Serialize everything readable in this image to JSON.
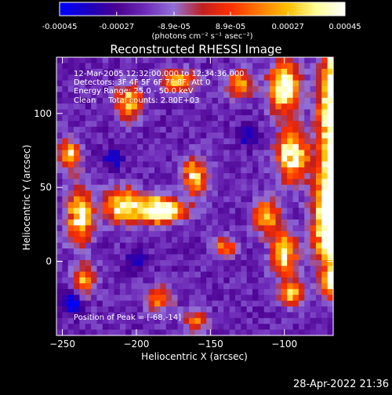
{
  "timestamp": "28-Apr-2022 21:36",
  "chart_data": {
    "type": "heatmap",
    "title": "Reconstructed RHESSI Image",
    "xlabel": "Heliocentric X (arcsec)",
    "ylabel": "Heliocentric Y (arcsec)",
    "xlim": [
      -254,
      -67
    ],
    "ylim": [
      -50,
      138
    ],
    "xticks": [
      -250,
      -200,
      -150,
      -100
    ],
    "yticks": [
      0,
      50,
      100
    ],
    "colorbar": {
      "range": [
        -0.00045,
        0.00045
      ],
      "tick_values": [
        -0.00045,
        -0.00027,
        -8.9e-05,
        8.9e-05,
        0.00027,
        0.00045
      ],
      "tick_labels": [
        "-0.00045",
        "-0.00027",
        "-8.9e-05",
        "8.9e-05",
        "0.00027",
        "0.00045"
      ],
      "unit_label": "(photons cm⁻² s⁻¹ asec⁻²)",
      "colors": [
        "#0000ff",
        "#1a00c0",
        "#4a0090",
        "#6e2ab8",
        "#9070d8",
        "#c02020",
        "#ff3000",
        "#ff7a00",
        "#ffc000",
        "#ffff9a",
        "#ffffff"
      ]
    },
    "annotations": [
      "12-Mar-2005 12:32:00.000 to 12:34:36.000",
      "Detectors: 3F 4F 5F 6F 7F 8F, Att 0",
      "Energy Range: 25.0 - 50.0 keV",
      "Clean     Total counts: 2.80E+03"
    ],
    "peak_label": "Position of Peak = [-68,-14]",
    "peak": [
      -68,
      -14
    ],
    "grid": false,
    "regions": [
      {
        "x": -64,
        "y": 95,
        "sx": 8,
        "sy": 45,
        "amp": 1.0
      },
      {
        "x": -68,
        "y": 25,
        "sx": 8,
        "sy": 22,
        "amp": 0.85
      },
      {
        "x": -64,
        "y": -14,
        "sx": 6,
        "sy": 6,
        "amp": 1.0
      },
      {
        "x": -100,
        "y": 118,
        "sx": 7,
        "sy": 12,
        "amp": 0.75
      },
      {
        "x": -95,
        "y": 72,
        "sx": 7,
        "sy": 12,
        "amp": 0.75
      },
      {
        "x": -112,
        "y": 30,
        "sx": 6,
        "sy": 8,
        "amp": 0.55
      },
      {
        "x": -100,
        "y": 5,
        "sx": 6,
        "sy": 10,
        "amp": 0.6
      },
      {
        "x": -95,
        "y": -22,
        "sx": 6,
        "sy": 6,
        "amp": 0.55
      },
      {
        "x": -185,
        "y": 35,
        "sx": 12,
        "sy": 6,
        "amp": 0.9
      },
      {
        "x": -160,
        "y": 58,
        "sx": 6,
        "sy": 8,
        "amp": 0.6
      },
      {
        "x": -210,
        "y": 38,
        "sx": 8,
        "sy": 8,
        "amp": 0.6
      },
      {
        "x": -238,
        "y": 30,
        "sx": 6,
        "sy": 12,
        "amp": 0.7
      },
      {
        "x": -245,
        "y": 72,
        "sx": 5,
        "sy": 8,
        "amp": 0.55
      },
      {
        "x": -205,
        "y": 108,
        "sx": 6,
        "sy": 8,
        "amp": 0.55
      },
      {
        "x": -172,
        "y": 122,
        "sx": 8,
        "sy": 5,
        "amp": 0.55
      },
      {
        "x": -130,
        "y": 120,
        "sx": 6,
        "sy": 6,
        "amp": 0.5
      },
      {
        "x": -235,
        "y": -12,
        "sx": 5,
        "sy": 8,
        "amp": 0.5
      },
      {
        "x": -185,
        "y": -25,
        "sx": 6,
        "sy": 6,
        "amp": 0.45
      },
      {
        "x": -140,
        "y": 10,
        "sx": 5,
        "sy": 5,
        "amp": 0.4
      },
      {
        "x": -160,
        "y": -40,
        "sx": 6,
        "sy": 5,
        "amp": 0.4
      }
    ],
    "cold_spots": [
      {
        "x": -242,
        "y": -28,
        "amp": 1.0
      },
      {
        "x": -215,
        "y": 70,
        "amp": 0.7
      },
      {
        "x": -125,
        "y": 85,
        "amp": 0.6
      },
      {
        "x": -200,
        "y": 0,
        "amp": 0.6
      }
    ]
  }
}
